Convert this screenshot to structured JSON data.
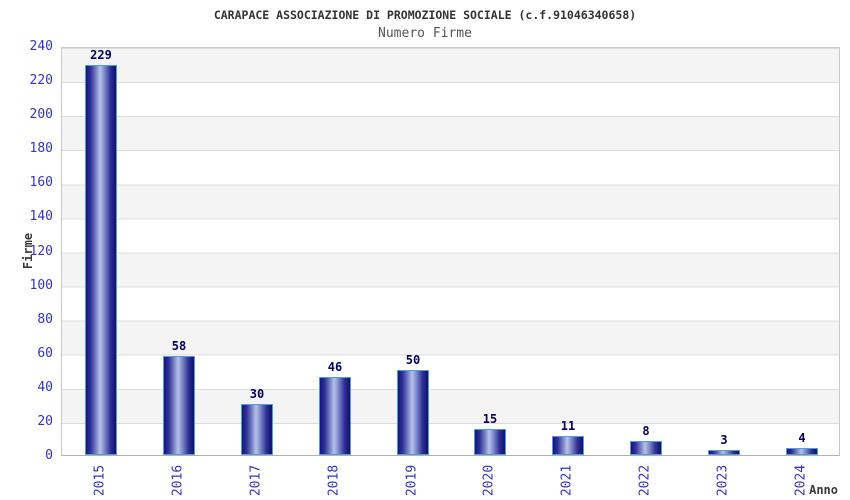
{
  "header": {
    "title": "CARAPACE ASSOCIAZIONE DI PROMOZIONE SOCIALE (c.f.91046340658)",
    "subtitle": "Numero Firme"
  },
  "chart_data": {
    "type": "bar",
    "title": "CARAPACE ASSOCIAZIONE DI PROMOZIONE SOCIALE (c.f.91046340658)",
    "subtitle": "Numero Firme",
    "categories": [
      "2015",
      "2016",
      "2017",
      "2018",
      "2019",
      "2020",
      "2021",
      "2022",
      "2023",
      "2024"
    ],
    "values": [
      229,
      58,
      30,
      46,
      50,
      15,
      11,
      8,
      3,
      4
    ],
    "xlabel": "Anno",
    "ylabel": "Firme",
    "ylim": [
      0,
      240
    ],
    "ytick_step": 20,
    "ytick_labels": [
      "0",
      "20",
      "40",
      "60",
      "80",
      "100",
      "120",
      "140",
      "160",
      "180",
      "200",
      "220",
      "240"
    ],
    "grid": true,
    "legend": "none",
    "colors": {
      "bar_edge_dark": "#10106e",
      "bar_center_light": "#b7c1ea",
      "bar_border": "#4f9ee0",
      "tick_label": "#3232cc",
      "value_label": "#000066",
      "axis_title": "#3a3a3a",
      "title": "#333333",
      "subtitle": "#555555",
      "band_gray": "#f4f4f4",
      "gridline": "#dcdcdc"
    }
  }
}
